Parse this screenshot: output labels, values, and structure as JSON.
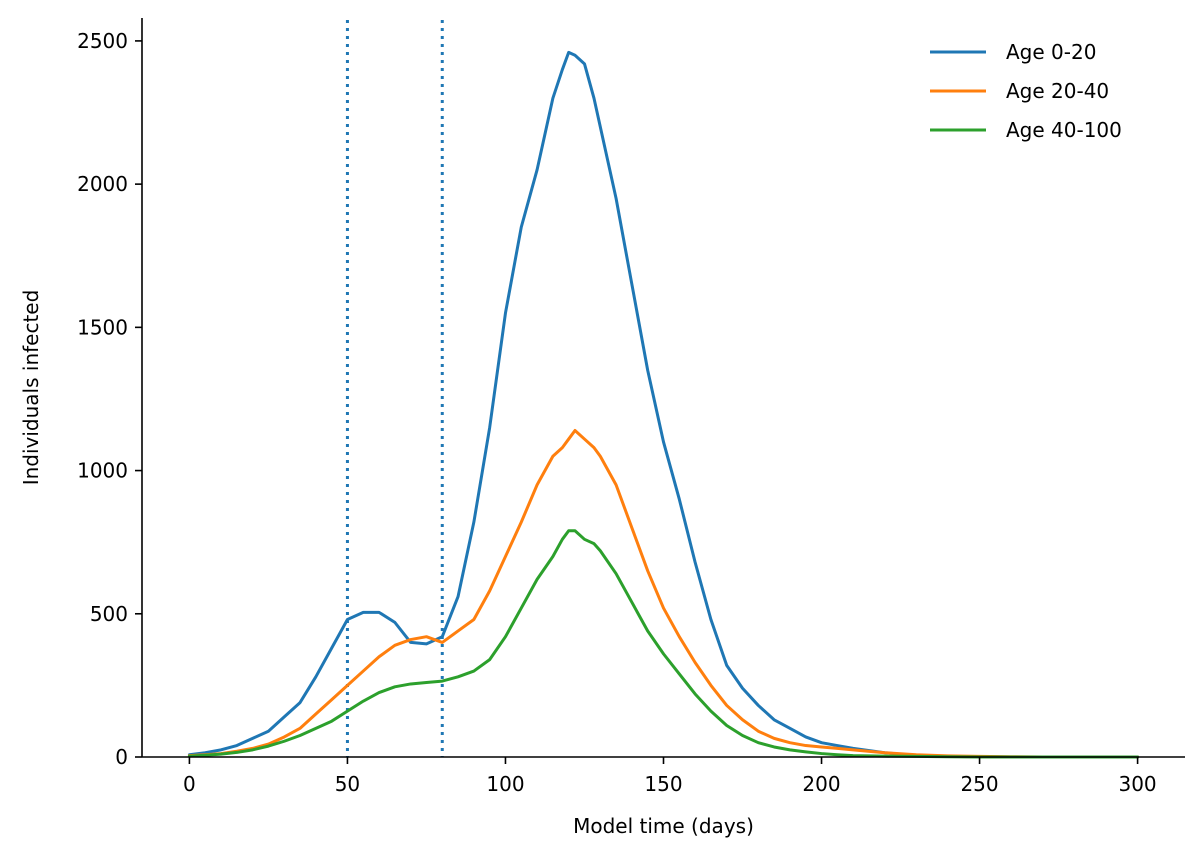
{
  "chart_data": {
    "type": "line",
    "title": "",
    "xlabel": "Model time (days)",
    "ylabel": "Individuals infected",
    "xlim": [
      -15,
      315
    ],
    "ylim": [
      0,
      2580
    ],
    "xticks": [
      0,
      50,
      100,
      150,
      200,
      250,
      300
    ],
    "yticks": [
      0,
      500,
      1000,
      1500,
      2000,
      2500
    ],
    "grid": false,
    "legend_position": "top-right",
    "vlines": [
      {
        "x": 50,
        "style": "dotted",
        "color": "#1f77b4"
      },
      {
        "x": 80,
        "style": "dotted",
        "color": "#1f77b4"
      }
    ],
    "series": [
      {
        "name": "Age 0-20",
        "color": "#1f77b4",
        "x": [
          0,
          5,
          10,
          15,
          20,
          25,
          30,
          35,
          40,
          45,
          50,
          55,
          60,
          65,
          70,
          75,
          80,
          85,
          90,
          95,
          100,
          105,
          110,
          115,
          118,
          120,
          122,
          125,
          128,
          130,
          135,
          140,
          145,
          150,
          155,
          160,
          165,
          170,
          175,
          180,
          185,
          190,
          195,
          200,
          205,
          210,
          220,
          230,
          240,
          250,
          260,
          270,
          280,
          290,
          300
        ],
        "y": [
          8,
          15,
          25,
          40,
          65,
          90,
          140,
          190,
          280,
          380,
          480,
          505,
          505,
          470,
          400,
          395,
          420,
          560,
          820,
          1150,
          1550,
          1850,
          2050,
          2300,
          2400,
          2460,
          2450,
          2420,
          2300,
          2200,
          1950,
          1650,
          1350,
          1100,
          900,
          680,
          480,
          320,
          240,
          180,
          130,
          100,
          70,
          50,
          40,
          30,
          15,
          5,
          2,
          1,
          0,
          0,
          0,
          0,
          0
        ],
        "peak": 2460
      },
      {
        "name": "Age 20-40",
        "color": "#ff7f0e",
        "x": [
          0,
          5,
          10,
          15,
          20,
          25,
          30,
          35,
          40,
          45,
          50,
          55,
          60,
          65,
          70,
          75,
          80,
          85,
          90,
          95,
          100,
          105,
          110,
          115,
          118,
          120,
          122,
          125,
          128,
          130,
          135,
          140,
          145,
          150,
          155,
          160,
          165,
          170,
          175,
          180,
          185,
          190,
          195,
          200,
          205,
          210,
          220,
          230,
          240,
          250,
          260,
          270,
          280,
          290,
          300
        ],
        "y": [
          5,
          8,
          12,
          20,
          30,
          45,
          70,
          100,
          150,
          200,
          250,
          300,
          350,
          390,
          410,
          420,
          400,
          440,
          480,
          580,
          700,
          820,
          950,
          1050,
          1080,
          1110,
          1140,
          1110,
          1080,
          1050,
          950,
          800,
          650,
          520,
          420,
          330,
          250,
          180,
          130,
          90,
          65,
          50,
          40,
          35,
          30,
          25,
          15,
          8,
          4,
          2,
          1,
          0,
          0,
          0,
          0
        ],
        "peak": 1140
      },
      {
        "name": "Age 40-100",
        "color": "#2ca02c",
        "x": [
          0,
          5,
          10,
          15,
          20,
          25,
          30,
          35,
          40,
          45,
          50,
          55,
          60,
          65,
          70,
          75,
          80,
          85,
          90,
          95,
          100,
          105,
          110,
          115,
          118,
          120,
          122,
          125,
          128,
          130,
          135,
          140,
          145,
          150,
          155,
          160,
          165,
          170,
          175,
          180,
          185,
          190,
          195,
          200,
          205,
          210,
          220,
          230,
          240,
          250,
          260,
          270,
          280,
          290,
          300
        ],
        "y": [
          3,
          6,
          10,
          16,
          25,
          38,
          55,
          75,
          100,
          125,
          160,
          195,
          225,
          245,
          255,
          260,
          265,
          280,
          300,
          340,
          420,
          520,
          620,
          700,
          760,
          790,
          790,
          760,
          745,
          720,
          640,
          540,
          440,
          360,
          290,
          220,
          160,
          110,
          75,
          50,
          35,
          25,
          18,
          12,
          8,
          5,
          3,
          2,
          1,
          0,
          0,
          0,
          0,
          0,
          0
        ],
        "peak": 790
      }
    ]
  }
}
